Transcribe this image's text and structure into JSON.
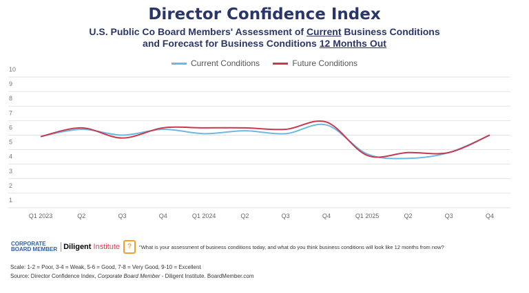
{
  "chart_data": {
    "type": "line",
    "title": "Director Confidence Index",
    "subtitle": {
      "line1_pre": "U.S. Public Co Board Members' Assessment of ",
      "line1_u": "Current",
      "line1_post": " Business Conditions",
      "line2_pre": "and Forecast for Business Conditions ",
      "line2_u": "12 Months Out"
    },
    "categories": [
      "Q1 2023",
      "Q2",
      "Q3",
      "Q4",
      "Q1 2024",
      "Q2",
      "Q3",
      "Q4",
      "Q1 2025",
      "Q2",
      "Q3",
      "Q4"
    ],
    "series": [
      {
        "name": "Current Conditions",
        "color": "#6cb8e0",
        "values": [
          5.9,
          6.4,
          6.0,
          6.4,
          6.1,
          6.3,
          6.1,
          6.7,
          4.7,
          4.4,
          4.8,
          6.0
        ]
      },
      {
        "name": "Future Conditions",
        "color": "#c8384f",
        "values": [
          5.9,
          6.5,
          5.8,
          6.5,
          6.5,
          6.5,
          6.4,
          6.9,
          4.6,
          4.8,
          4.8,
          6.0
        ]
      }
    ],
    "yticks": [
      1,
      2,
      3,
      4,
      5,
      6,
      7,
      8,
      9,
      10
    ],
    "ylim": [
      1,
      10
    ],
    "grid": true,
    "legend_placement": "top-center",
    "smooth": true
  },
  "footer": {
    "logo_cbm": "CORPORATE BOARD MEMBER",
    "logo_diligent": "Diligent",
    "logo_institute": "Institute",
    "question_icon": "question-bubble-icon",
    "question": "\"What is your assessment of business conditions today, and what do you think business conditions will look like 12 months from now?",
    "scale": "Scale: 1-2 = Poor, 3-4 = Weak, 5-6 = Good, 7-8 = Very Good, 9-10 = Excellent",
    "source_pre": "Source: Director Confidence Index, ",
    "source_italic": "Corporate Board Member",
    "source_post": " - Diligent Institute. BoardMember.com"
  }
}
